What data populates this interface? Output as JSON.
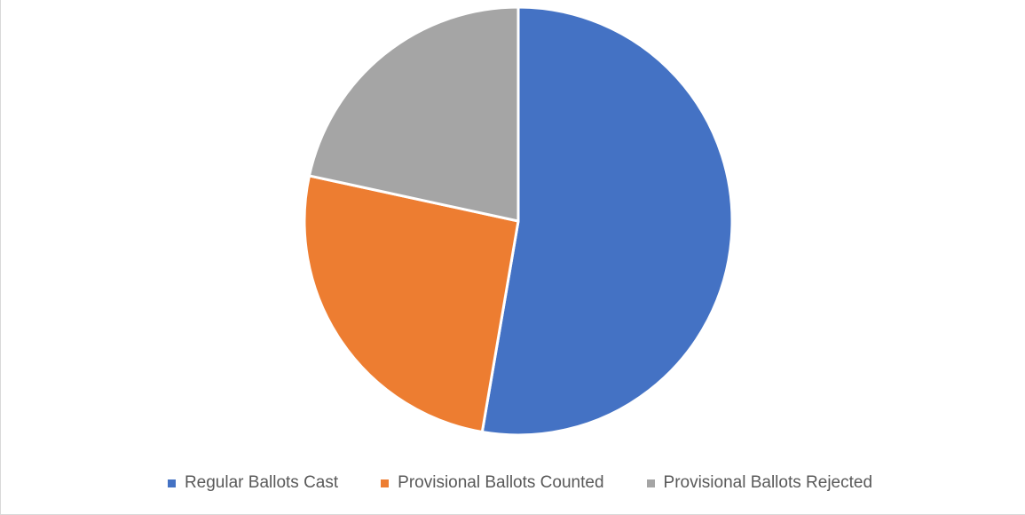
{
  "chart_data": {
    "type": "pie",
    "title": "",
    "start_angle_deg": 0,
    "direction": "clockwise",
    "legend_position": "bottom",
    "slices": [
      {
        "label": "Regular Ballots Cast",
        "value": 52.7,
        "color": "#4472C4"
      },
      {
        "label": "Provisional Ballots Counted",
        "value": 25.7,
        "color": "#ED7D31"
      },
      {
        "label": "Provisional Ballots Rejected",
        "value": 21.6,
        "color": "#A5A5A5"
      }
    ]
  }
}
